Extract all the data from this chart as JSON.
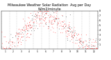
{
  "title": "Milwaukee Weather Solar Radiation  Avg per Day W/m2/minute",
  "title_fontsize": 3.5,
  "ylim": [
    0,
    8
  ],
  "xlim": [
    0,
    365
  ],
  "y_ticks": [
    1,
    2,
    3,
    4,
    5,
    6,
    7,
    8
  ],
  "y_tick_labels": [
    "1",
    "2",
    "3",
    "4",
    "5",
    "6",
    "7",
    "8"
  ],
  "y_tick_fontsize": 2.5,
  "x_tick_fontsize": 2.2,
  "background_color": "#ffffff",
  "grid_color": "#999999",
  "dot_color_red": "#ff0000",
  "dot_color_black": "#111111",
  "month_starts": [
    1,
    32,
    60,
    91,
    121,
    152,
    182,
    213,
    244,
    274,
    305,
    335
  ],
  "month_labels": [
    "1",
    "2",
    "3",
    "4",
    "5",
    "6",
    "7",
    "8",
    "9",
    "10",
    "11",
    "12"
  ],
  "dot_size": 0.3
}
